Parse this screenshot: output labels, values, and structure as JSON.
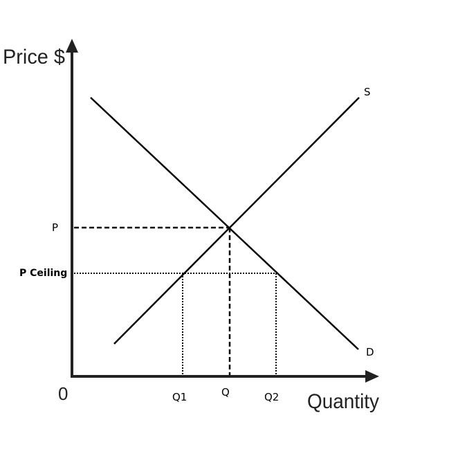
{
  "axes": {
    "y_title": "Price $",
    "x_title": "Quantity",
    "origin": "0"
  },
  "curves": {
    "supply": "S",
    "demand": "D"
  },
  "prices": {
    "equilibrium": "P",
    "ceiling": "P Ceiling"
  },
  "quantities": {
    "q1": "Q1",
    "q": "Q",
    "q2": "Q2"
  },
  "colors": {
    "ink": "#000000",
    "axis": "#222222"
  }
}
